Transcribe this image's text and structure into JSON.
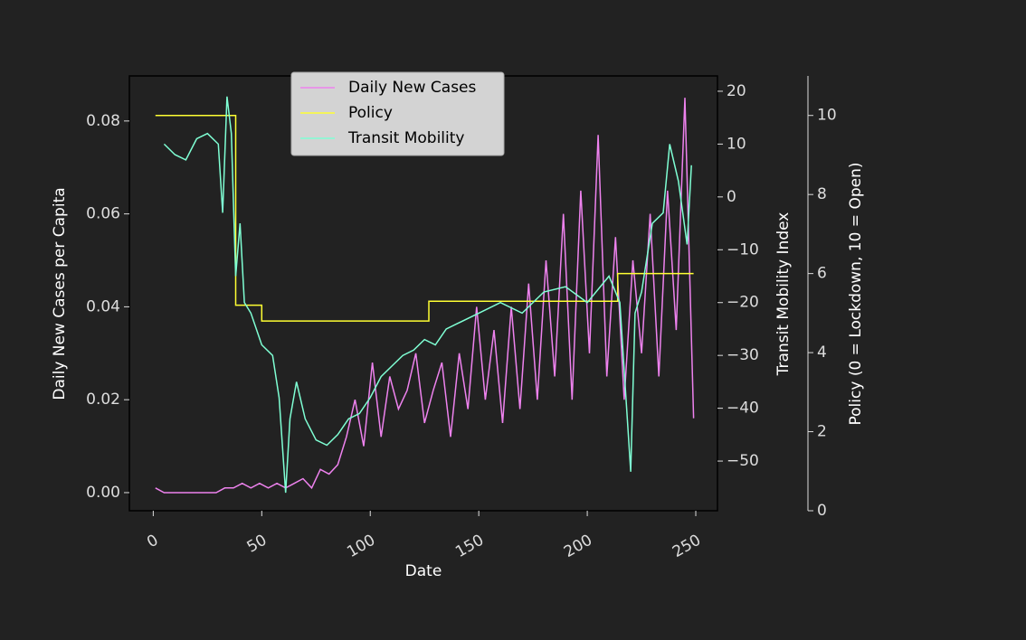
{
  "chart_data": {
    "type": "line",
    "xlabel": "Date",
    "ylabel": "Daily New Cases per Capita",
    "y2label": "Transit Mobility Index",
    "y3label": "Policy (0 = Lockdown, 10 = Open)",
    "xlim": [
      -11,
      260
    ],
    "xticks": [
      0,
      50,
      100,
      150,
      200,
      250
    ],
    "ylim": [
      -0.0039,
      0.0897
    ],
    "yticks": [
      {
        "value": 0,
        "label": "0.00"
      },
      {
        "value": 0.02,
        "label": "0.02"
      },
      {
        "value": 0.04,
        "label": "0.04"
      },
      {
        "value": 0.06,
        "label": "0.06"
      },
      {
        "value": 0.08,
        "label": "0.08"
      }
    ],
    "y2lim": [
      -59.4,
      22.9
    ],
    "y2ticks": [
      {
        "value": -50,
        "label": "−50"
      },
      {
        "value": -40,
        "label": "−40"
      },
      {
        "value": -30,
        "label": "−30"
      },
      {
        "value": -20,
        "label": "−20"
      },
      {
        "value": -10,
        "label": "−10"
      },
      0,
      10,
      20
    ],
    "y3lim": [
      0,
      11
    ],
    "y3ticks": [
      0,
      2,
      4,
      6,
      8,
      10
    ],
    "legend": "upper center",
    "series": [
      {
        "name": "Daily New Cases",
        "color": "#ee82ee",
        "axis": "y",
        "x": [
          1,
          5,
          9,
          13,
          17,
          21,
          25,
          29,
          33,
          37,
          41,
          45,
          49,
          53,
          57,
          61,
          65,
          69,
          73,
          77,
          81,
          85,
          89,
          93,
          97,
          101,
          105,
          109,
          113,
          117,
          121,
          125,
          129,
          133,
          137,
          141,
          145,
          149,
          153,
          157,
          161,
          165,
          169,
          173,
          177,
          181,
          185,
          189,
          193,
          197,
          201,
          205,
          209,
          213,
          217,
          221,
          225,
          229,
          233,
          237,
          241,
          245,
          249
        ],
        "values": [
          0.001,
          0,
          0,
          0,
          0,
          0,
          0,
          0,
          0.001,
          0.001,
          0.002,
          0.001,
          0.002,
          0.001,
          0.002,
          0.001,
          0.002,
          0.003,
          0.001,
          0.005,
          0.004,
          0.006,
          0.012,
          0.02,
          0.01,
          0.028,
          0.012,
          0.025,
          0.018,
          0.022,
          0.03,
          0.015,
          0.022,
          0.028,
          0.012,
          0.03,
          0.018,
          0.04,
          0.02,
          0.035,
          0.015,
          0.04,
          0.018,
          0.045,
          0.02,
          0.05,
          0.025,
          0.06,
          0.02,
          0.065,
          0.03,
          0.077,
          0.025,
          0.055,
          0.02,
          0.05,
          0.03,
          0.06,
          0.025,
          0.065,
          0.035,
          0.085,
          0.016
        ]
      },
      {
        "name": "Policy",
        "color": "#ffff33",
        "axis": "y3",
        "x": [
          1,
          38,
          38,
          50,
          50,
          127,
          127,
          214,
          214,
          249
        ],
        "values": [
          10,
          10,
          5.2,
          5.2,
          4.8,
          4.8,
          5.3,
          5.3,
          6,
          6
        ]
      },
      {
        "name": "Transit Mobility",
        "color": "#7fffd4",
        "axis": "y2",
        "x": [
          5,
          10,
          15,
          20,
          25,
          30,
          32,
          34,
          36,
          38,
          40,
          42,
          45,
          50,
          55,
          58,
          61,
          63,
          66,
          70,
          75,
          80,
          85,
          90,
          95,
          100,
          105,
          110,
          115,
          120,
          125,
          130,
          135,
          140,
          150,
          160,
          170,
          180,
          190,
          200,
          210,
          215,
          220,
          222,
          225,
          230,
          235,
          238,
          242,
          246,
          248
        ],
        "values": [
          10,
          8,
          7,
          11,
          12,
          10,
          -3,
          19,
          12,
          -15,
          -5,
          -20,
          -22,
          -28,
          -30,
          -38,
          -56,
          -42,
          -35,
          -42,
          -46,
          -47,
          -45,
          -42,
          -41,
          -38,
          -34,
          -32,
          -30,
          -29,
          -27,
          -28,
          -25,
          -24,
          -22,
          -20,
          -22,
          -18,
          -17,
          -20,
          -15,
          -20,
          -52,
          -22,
          -18,
          -5,
          -3,
          10,
          3,
          -9,
          6
        ]
      }
    ]
  }
}
